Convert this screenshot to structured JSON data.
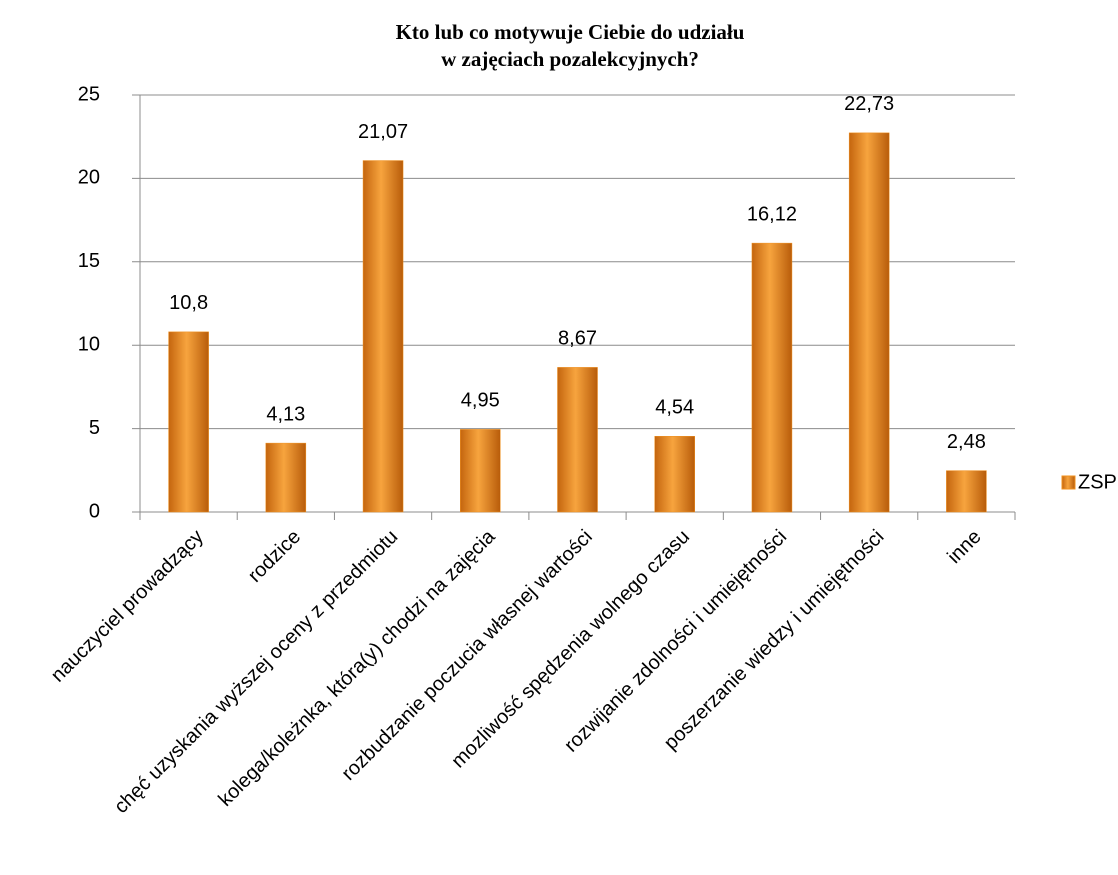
{
  "chart_data": {
    "type": "bar",
    "title": [
      "Kto lub co motywuje Ciebie do udziału",
      "w zajęciach pozalekcyjnych?"
    ],
    "categories": [
      "nauczyciel prowadzący",
      "rodzice",
      "chęć uzyskania wyższej oceny z przedmiotu",
      "kolega/koleżnka, która(y) chodzi na zajęcia",
      "rozbudzanie poczucia własnej wartości",
      "mozliwość spędzenia wolnego czasu",
      "rozwijanie zdolności i umiejętności",
      "poszerzanie wiedzy i umiejętności",
      "inne"
    ],
    "series": [
      {
        "name": "ZSP",
        "color": "#f0901e",
        "values": [
          10.8,
          4.13,
          21.07,
          4.95,
          8.67,
          4.54,
          16.12,
          22.73,
          2.48
        ],
        "value_labels": [
          "10,8",
          "4,13",
          "21,07",
          "4,95",
          "8,67",
          "4,54",
          "16,12",
          "22,73",
          "2,48"
        ]
      }
    ],
    "ylim": [
      0,
      25
    ],
    "yticks": [
      0,
      5,
      10,
      15,
      20,
      25
    ],
    "grid": true,
    "legend": "right"
  }
}
